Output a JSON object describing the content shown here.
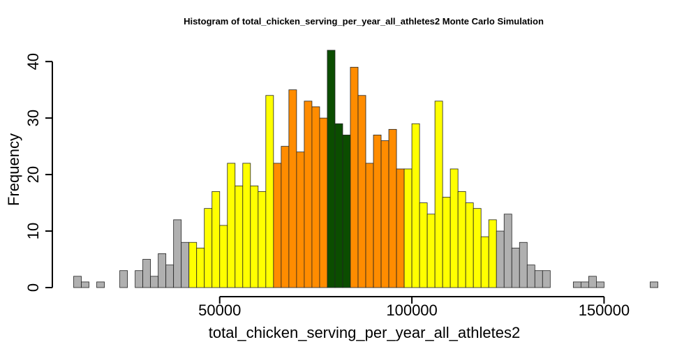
{
  "chart_data": {
    "type": "bar",
    "title": "Histogram of  total_chicken_serving_per_year_all_athletes2  Monte Carlo Simulation",
    "xlabel": "total_chicken_serving_per_year_all_athletes2",
    "ylabel": "Frequency",
    "xlim": [
      12000,
      163000
    ],
    "ylim": [
      0,
      42
    ],
    "x_ticks": [
      50000,
      100000,
      150000
    ],
    "x_tick_labels": [
      "50000",
      "100000",
      "150000"
    ],
    "y_ticks": [
      0,
      10,
      20,
      30,
      40
    ],
    "y_tick_labels": [
      "0",
      "10",
      "20",
      "30",
      "40"
    ],
    "bin_start": 12000,
    "bin_width": 2000,
    "values": [
      2,
      1,
      0,
      1,
      0,
      0,
      3,
      0,
      3,
      5,
      2,
      6,
      4,
      12,
      8,
      8,
      7,
      14,
      17,
      11,
      22,
      18,
      22,
      18,
      17,
      34,
      22,
      25,
      35,
      24,
      33,
      32,
      30,
      42,
      29,
      27,
      39,
      34,
      22,
      27,
      26,
      28,
      21,
      21,
      29,
      15,
      13,
      33,
      16,
      21,
      17,
      15,
      14,
      9,
      12,
      10,
      13,
      7,
      8,
      4,
      3,
      3,
      0,
      0,
      0,
      1,
      1,
      2,
      1,
      0,
      0,
      0,
      0,
      0,
      0,
      1
    ],
    "bin_colors": [
      "#b0b0b0",
      "#b0b0b0",
      "#b0b0b0",
      "#b0b0b0",
      "#b0b0b0",
      "#b0b0b0",
      "#b0b0b0",
      "#b0b0b0",
      "#b0b0b0",
      "#b0b0b0",
      "#b0b0b0",
      "#b0b0b0",
      "#b0b0b0",
      "#b0b0b0",
      "#b0b0b0",
      "#ffff00",
      "#ffff00",
      "#ffff00",
      "#ffff00",
      "#ffff00",
      "#ffff00",
      "#ffff00",
      "#ffff00",
      "#ffff00",
      "#ffff00",
      "#ffff00",
      "#ff8c00",
      "#ff8c00",
      "#ff8c00",
      "#ff8c00",
      "#ff8c00",
      "#ff8c00",
      "#ff8c00",
      "#0b4d00",
      "#0b4d00",
      "#0b4d00",
      "#ff8c00",
      "#ff8c00",
      "#ff8c00",
      "#ff8c00",
      "#ff8c00",
      "#ff8c00",
      "#ff8c00",
      "#ffff00",
      "#ffff00",
      "#ffff00",
      "#ffff00",
      "#ffff00",
      "#ffff00",
      "#ffff00",
      "#ffff00",
      "#ffff00",
      "#ffff00",
      "#ffff00",
      "#ffff00",
      "#b0b0b0",
      "#b0b0b0",
      "#b0b0b0",
      "#b0b0b0",
      "#b0b0b0",
      "#b0b0b0",
      "#b0b0b0",
      "#b0b0b0",
      "#b0b0b0",
      "#b0b0b0",
      "#b0b0b0",
      "#b0b0b0",
      "#b0b0b0",
      "#b0b0b0",
      "#b0b0b0",
      "#b0b0b0",
      "#b0b0b0",
      "#b0b0b0",
      "#b0b0b0",
      "#b0b0b0",
      "#b0b0b0"
    ],
    "colors": {
      "tail": "#b0b0b0",
      "outer": "#ffff00",
      "inner": "#ff8c00",
      "center": "#0b4d00"
    },
    "grid": false,
    "legend": "none"
  }
}
